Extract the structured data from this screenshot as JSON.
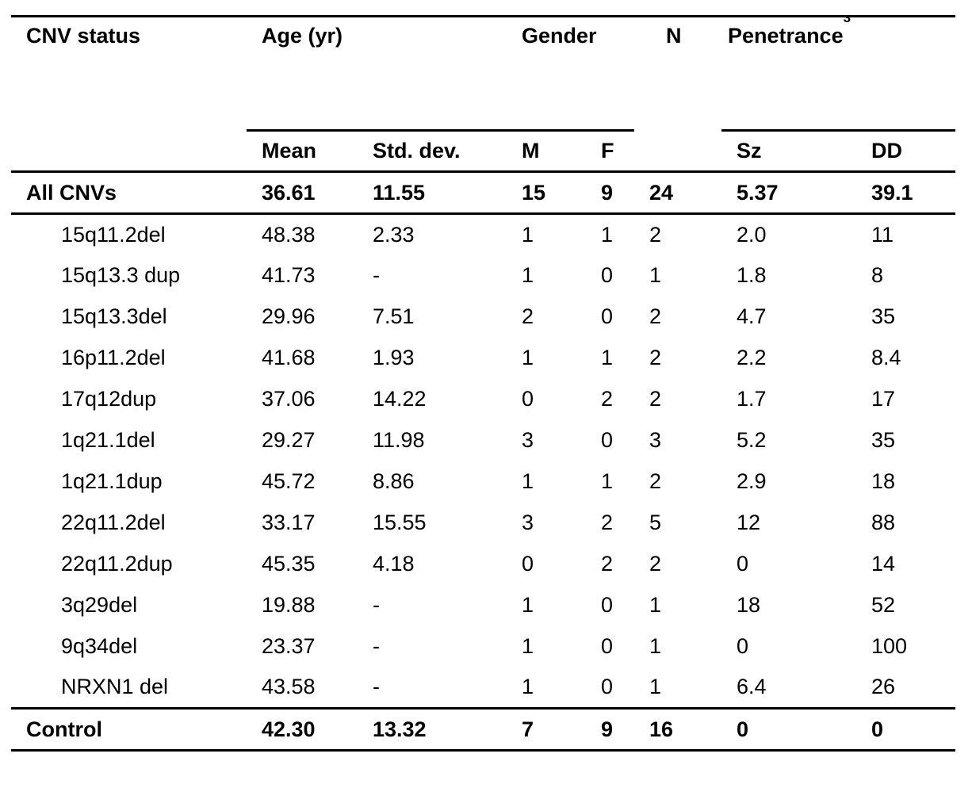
{
  "table": {
    "col_groups": [
      {
        "label": "CNV status"
      },
      {
        "label": "Age (yr)"
      },
      {
        "label": "Gender"
      },
      {
        "label": "N"
      },
      {
        "label": "Penetrance",
        "sup": "3"
      }
    ],
    "sub_headers": [
      "Mean",
      "Std. dev.",
      "M",
      "F",
      "Sz",
      "DD"
    ],
    "summary_row": {
      "label": "All CNVs",
      "values": [
        "36.61",
        "11.55",
        "15",
        "9",
        "24",
        "5.37",
        "39.1"
      ]
    },
    "body_rows": [
      {
        "label": "15q11.2del",
        "values": [
          "48.38",
          "2.33",
          "1",
          "1",
          "2",
          "2.0",
          "11"
        ]
      },
      {
        "label": "15q13.3 dup",
        "values": [
          "41.73",
          "-",
          "1",
          "0",
          "1",
          "1.8",
          "8"
        ]
      },
      {
        "label": "15q13.3del",
        "values": [
          "29.96",
          "7.51",
          "2",
          "0",
          "2",
          "4.7",
          "35"
        ]
      },
      {
        "label": "16p11.2del",
        "values": [
          "41.68",
          "1.93",
          "1",
          "1",
          "2",
          "2.2",
          "8.4"
        ]
      },
      {
        "label": "17q12dup",
        "values": [
          "37.06",
          "14.22",
          "0",
          "2",
          "2",
          "1.7",
          "17"
        ]
      },
      {
        "label": "1q21.1del",
        "values": [
          "29.27",
          "11.98",
          "3",
          "0",
          "3",
          "5.2",
          "35"
        ]
      },
      {
        "label": "1q21.1dup",
        "values": [
          "45.72",
          "8.86",
          "1",
          "1",
          "2",
          "2.9",
          "18"
        ]
      },
      {
        "label": "22q11.2del",
        "values": [
          "33.17",
          "15.55",
          "3",
          "2",
          "5",
          "12",
          "88"
        ]
      },
      {
        "label": "22q11.2dup",
        "values": [
          "45.35",
          "4.18",
          "0",
          "2",
          "2",
          "0",
          "14"
        ]
      },
      {
        "label": "3q29del",
        "values": [
          "19.88",
          "-",
          "1",
          "0",
          "1",
          "18",
          "52"
        ]
      },
      {
        "label": "9q34del",
        "values": [
          "23.37",
          "-",
          "1",
          "0",
          "1",
          "0",
          "100"
        ]
      },
      {
        "label": "NRXN1 del",
        "values": [
          "43.58",
          "-",
          "1",
          "0",
          "1",
          "6.4",
          "26"
        ]
      }
    ],
    "footer_row": {
      "label": "Control",
      "values": [
        "42.30",
        "13.32",
        "7",
        "9",
        "16",
        "0",
        "0"
      ]
    }
  },
  "colors": {
    "text": "#000000",
    "background": "#ffffff",
    "rule": "#000000"
  }
}
